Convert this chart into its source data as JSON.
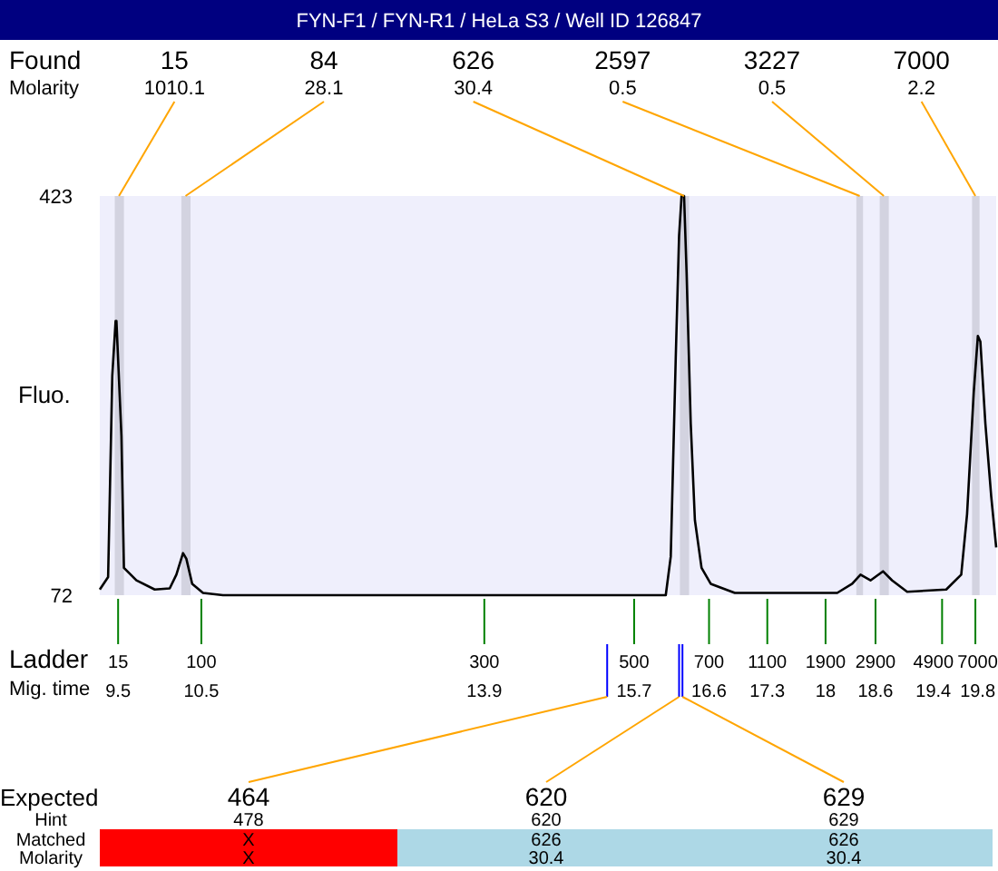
{
  "chart_data": [
    {
      "type": "line",
      "title": "FYN-F1 / FYN-R1 / HeLa S3 / Well ID 126847",
      "xlabel": "Mig. time",
      "ylabel": "Fluo.",
      "xlim": [
        9.28,
        20.05
      ],
      "ylim": [
        72,
        423
      ],
      "yticks": [
        72,
        423
      ],
      "xticks": [
        9.5,
        10.5,
        13.9,
        15.7,
        16.6,
        17.3,
        18,
        18.6,
        19.4,
        19.8
      ],
      "x": [
        9.28,
        9.38,
        9.43,
        9.47,
        9.48,
        9.54,
        9.57,
        9.72,
        9.94,
        10.12,
        10.2,
        10.28,
        10.32,
        10.39,
        10.52,
        10.76,
        16.08,
        16.14,
        16.2,
        16.24,
        16.27,
        16.3,
        16.33,
        16.38,
        16.43,
        16.51,
        16.62,
        16.91,
        18.14,
        18.32,
        18.42,
        18.54,
        18.69,
        18.8,
        18.98,
        19.45,
        19.63,
        19.7,
        19.78,
        19.83,
        19.86,
        19.92,
        19.99,
        20.05
      ],
      "series": [
        {
          "color": "#000000",
          "values": [
            77,
            88,
            265,
            313,
            313,
            212,
            96,
            85,
            77,
            78,
            90,
            109,
            104,
            82,
            74,
            72,
            72,
            106,
            281,
            388,
            423,
            423,
            356,
            223,
            138,
            96,
            82,
            74,
            74,
            82,
            90,
            85,
            93,
            85,
            75,
            77,
            90,
            143,
            250,
            300,
            295,
            223,
            159,
            114
          ]
        }
      ],
      "bands": [
        {
          "axis": "x",
          "from": 9.46,
          "to": 9.57,
          "color": "#d3d3e0"
        },
        {
          "axis": "x",
          "from": 10.26,
          "to": 10.37,
          "color": "#d3d3e0"
        },
        {
          "axis": "x",
          "from": 16.25,
          "to": 16.36,
          "color": "#d3d3e0"
        },
        {
          "axis": "x",
          "from": 18.37,
          "to": 18.45,
          "color": "#d3d3e0"
        },
        {
          "axis": "x",
          "from": 18.65,
          "to": 18.76,
          "color": "#d3d3e0"
        },
        {
          "axis": "x",
          "from": 19.76,
          "to": 19.85,
          "color": "#d3d3e0"
        }
      ],
      "annotations": [
        "Found",
        "Molarity",
        "Ladder",
        {
          "text": "15",
          "x": 9.5,
          "y": 72
        },
        {
          "text": "100",
          "x": 10.5,
          "y": 72
        },
        {
          "text": "300",
          "x": 13.9,
          "y": 72
        },
        {
          "text": "500",
          "x": 15.7,
          "y": 72
        },
        {
          "text": "700",
          "x": 16.6,
          "y": 82
        },
        {
          "text": "1100",
          "x": 17.3,
          "y": 72
        },
        {
          "text": "1900",
          "x": 18,
          "y": 72
        },
        {
          "text": "2900",
          "x": 18.6,
          "y": 72
        },
        {
          "text": "4900",
          "x": 19.4,
          "y": 72
        },
        {
          "text": "7000",
          "x": 19.8,
          "y": 72
        },
        {
          "text": "15\n1010.1",
          "x": 9.51,
          "y": 423
        },
        {
          "text": "84\n28.1",
          "x": 10.31,
          "y": 423
        },
        {
          "text": "626\n30.4",
          "x": 16.3,
          "y": 423
        },
        {
          "text": "2597\n0.5",
          "x": 18.41,
          "y": 423
        },
        {
          "text": "3227\n0.5",
          "x": 18.7,
          "y": 423
        },
        {
          "text": "7000\n2.2",
          "x": 19.8,
          "y": 423
        }
      ]
    },
    {
      "type": "other",
      "xlabel": "Expected",
      "categories": [
        "464",
        "620",
        "629"
      ],
      "data_labels": true,
      "annotations": [
        "Hint",
        "Matched",
        "Molarity"
      ],
      "series": [
        {
          "values": [
            478,
            620,
            629
          ]
        },
        {
          "values": [
            null,
            626,
            626
          ],
          "value_labels": [
            "X",
            "626",
            "626"
          ]
        },
        {
          "values": [
            null,
            30.4,
            30.4
          ],
          "value_labels": [
            "X",
            "30.4",
            "30.4"
          ]
        }
      ]
    }
  ]
}
